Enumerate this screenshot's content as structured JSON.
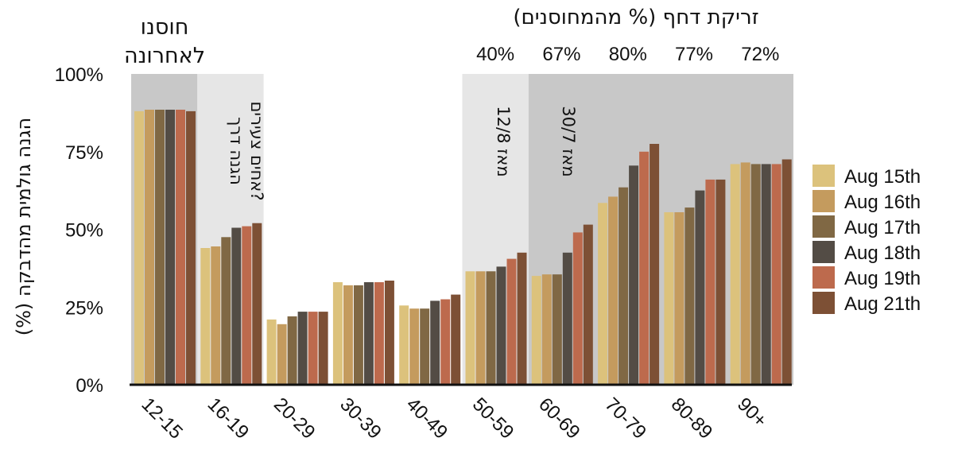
{
  "chart_data": {
    "type": "bar",
    "categories": [
      "12-15",
      "16-19",
      "20-29",
      "30-39",
      "40-49",
      "50-59",
      "60-69",
      "70-79",
      "80-89",
      "90+"
    ],
    "ylabel": "(%) הגנה גולמית מהדבקה",
    "ylim": [
      0,
      100
    ],
    "yticks": [
      "0%",
      "25%",
      "50%",
      "75%",
      "100%"
    ],
    "series": [
      {
        "name": "Aug 15th",
        "color": "#dcc27c",
        "values": [
          88,
          44,
          21,
          33,
          25.5,
          36.5,
          35,
          58.5,
          55.5,
          71
        ]
      },
      {
        "name": "Aug 16th",
        "color": "#c49b5e",
        "values": [
          88.5,
          44.5,
          19.5,
          32,
          24.5,
          36.5,
          35.5,
          60.5,
          55.5,
          71.5
        ]
      },
      {
        "name": "Aug 17th",
        "color": "#806844",
        "values": [
          88.5,
          47.5,
          22,
          32,
          24.5,
          36.5,
          35.5,
          63.5,
          57,
          71
        ]
      },
      {
        "name": "Aug 18th",
        "color": "#534c45",
        "values": [
          88.5,
          50.5,
          23.5,
          33,
          27,
          38,
          42.5,
          70.5,
          62.5,
          71
        ]
      },
      {
        "name": "Aug 19th",
        "color": "#bd6a4d",
        "values": [
          88.5,
          51,
          23.5,
          33,
          27.5,
          40.5,
          49,
          75,
          66,
          71
        ]
      },
      {
        "name": "Aug 21th",
        "color": "#7d5035",
        "values": [
          88,
          52,
          23.5,
          33.5,
          29,
          42.5,
          51.5,
          77.5,
          66,
          72.5
        ]
      }
    ],
    "legend_position": "right",
    "annotations": {
      "recent_vaccinated": "חוסנו לאחרונה",
      "youth_protection": "הגנה דרך אחים צעירים?",
      "booster_title": "זריקת דחף (% מהמחוסנים)",
      "booster_pcts": [
        "40%",
        "67%",
        "80%",
        "77%",
        "72%"
      ],
      "since_12_8": "מאז 12/8",
      "since_30_7": "מאז 30/7"
    },
    "colors": {
      "shade_dark": "#c8c8c8",
      "shade_light": "#e6e6e6"
    }
  }
}
